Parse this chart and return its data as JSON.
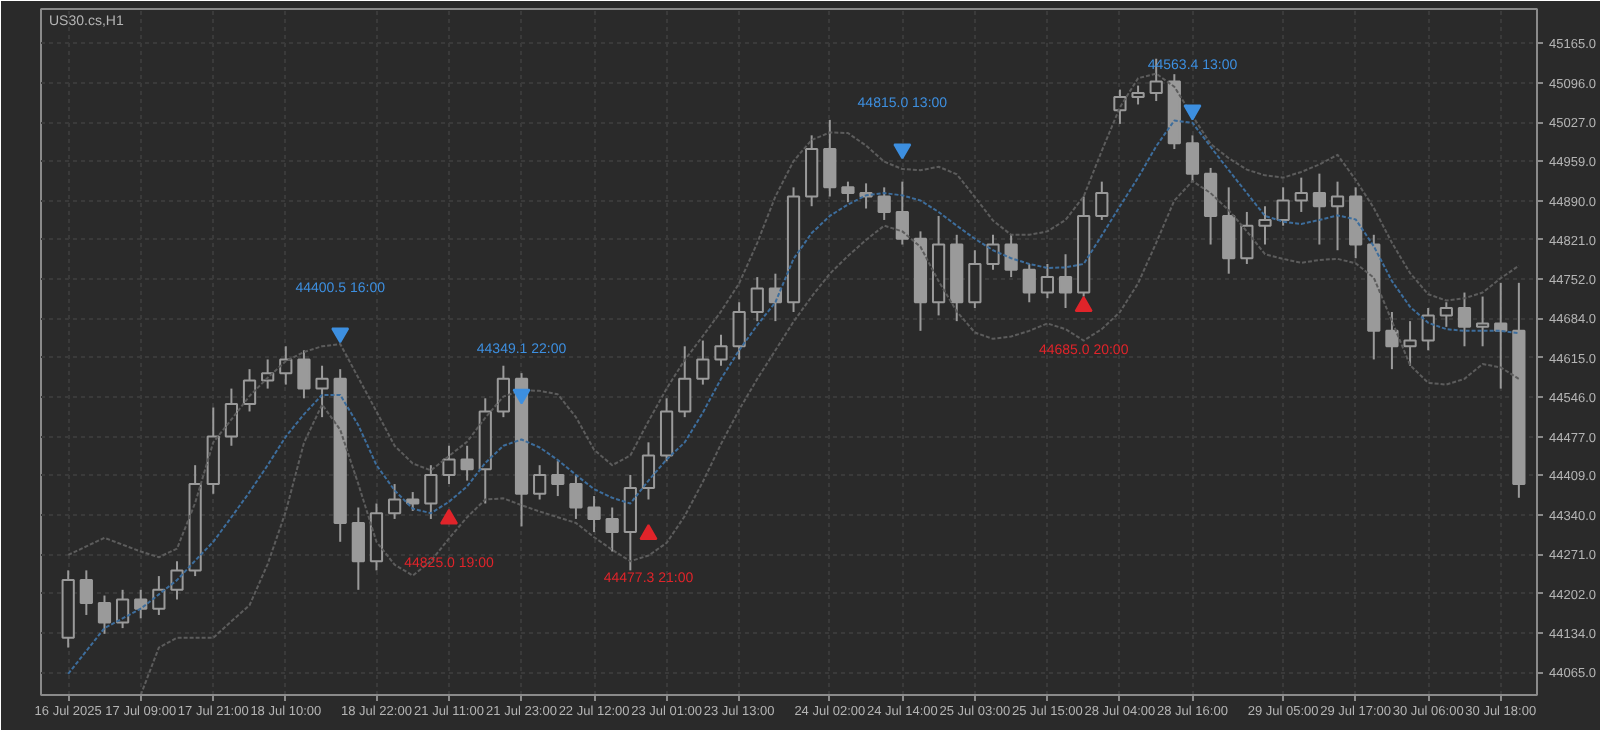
{
  "chart_data": {
    "type": "candlestick",
    "title": "US30.cs,H1",
    "categories": [
      "16 Jul 2025",
      null,
      null,
      null,
      "17 Jul 09:00",
      null,
      null,
      null,
      "17 Jul 21:00",
      null,
      null,
      null,
      "18 Jul 10:00",
      null,
      null,
      null,
      null,
      "18 Jul 22:00",
      null,
      null,
      null,
      "21 Jul 11:00",
      null,
      null,
      null,
      "21 Jul 23:00",
      null,
      null,
      null,
      "22 Jul 12:00",
      null,
      null,
      null,
      "23 Jul 01:00",
      null,
      null,
      null,
      "23 Jul 13:00",
      null,
      null,
      null,
      null,
      "24 Jul 02:00",
      null,
      null,
      null,
      "24 Jul 14:00",
      null,
      null,
      null,
      "25 Jul 03:00",
      null,
      null,
      null,
      "25 Jul 15:00",
      null,
      null,
      null,
      "28 Jul 04:00",
      null,
      null,
      null,
      "28 Jul 16:00",
      null,
      null,
      null,
      null,
      "29 Jul 05:00",
      null,
      null,
      null,
      "29 Jul 17:00",
      null,
      null,
      null,
      "30 Jul 06:00",
      null,
      null,
      null,
      "30 Jul 18:00",
      null
    ],
    "ohlc": [
      [
        44125,
        44243,
        44108,
        44226
      ],
      [
        44226,
        44243,
        44165,
        44186
      ],
      [
        44186,
        44199,
        44132,
        44152
      ],
      [
        44152,
        44209,
        44142,
        44192
      ],
      [
        44192,
        44209,
        44159,
        44176
      ],
      [
        44176,
        44233,
        44165,
        44209
      ],
      [
        44209,
        44259,
        44192,
        44243
      ],
      [
        44243,
        44427,
        44233,
        44394
      ],
      [
        44394,
        44528,
        44377,
        44477
      ],
      [
        44477,
        44561,
        44461,
        44534
      ],
      [
        44534,
        44595,
        44521,
        44575
      ],
      [
        44575,
        44612,
        44561,
        44588
      ],
      [
        44588,
        44635,
        44568,
        44612
      ],
      [
        44612,
        44628,
        44544,
        44561
      ],
      [
        44561,
        44601,
        44511,
        44578
      ],
      [
        44578,
        44595,
        44293,
        44326
      ],
      [
        44326,
        44353,
        44209,
        44259
      ],
      [
        44259,
        44360,
        44243,
        44343
      ],
      [
        44343,
        44394,
        44333,
        44367
      ],
      [
        44367,
        44380,
        44347,
        44360
      ],
      [
        44360,
        44427,
        44333,
        44410
      ],
      [
        44410,
        44461,
        44394,
        44437
      ],
      [
        44437,
        44461,
        44400,
        44420
      ],
      [
        44420,
        44544,
        44360,
        44521
      ],
      [
        44521,
        44601,
        44511,
        44578
      ],
      [
        44578,
        44588,
        44320,
        44377
      ],
      [
        44377,
        44427,
        44367,
        44410
      ],
      [
        44410,
        44434,
        44373,
        44394
      ],
      [
        44394,
        44410,
        44333,
        44353
      ],
      [
        44353,
        44373,
        44310,
        44333
      ],
      [
        44333,
        44353,
        44276,
        44310
      ],
      [
        44310,
        44410,
        44243,
        44387
      ],
      [
        44387,
        44467,
        44367,
        44444
      ],
      [
        44444,
        44544,
        44434,
        44521
      ],
      [
        44521,
        44635,
        44511,
        44578
      ],
      [
        44578,
        44645,
        44568,
        44612
      ],
      [
        44612,
        44655,
        44601,
        44635
      ],
      [
        44635,
        44712,
        44612,
        44695
      ],
      [
        44695,
        44756,
        44679,
        44736
      ],
      [
        44736,
        44762,
        44679,
        44712
      ],
      [
        44712,
        44913,
        44695,
        44897
      ],
      [
        44897,
        45004,
        44880,
        44980
      ],
      [
        44980,
        45031,
        44897,
        44913
      ],
      [
        44913,
        44923,
        44887,
        44903
      ],
      [
        44903,
        44920,
        44876,
        44897
      ],
      [
        44897,
        44913,
        44856,
        44870
      ],
      [
        44870,
        44923,
        44813,
        44823
      ],
      [
        44823,
        44836,
        44662,
        44712
      ],
      [
        44712,
        44863,
        44689,
        44813
      ],
      [
        44813,
        44830,
        44679,
        44712
      ],
      [
        44712,
        44803,
        44702,
        44779
      ],
      [
        44779,
        44830,
        44769,
        44813
      ],
      [
        44813,
        44830,
        44756,
        44769
      ],
      [
        44769,
        44779,
        44712,
        44729
      ],
      [
        44729,
        44779,
        44719,
        44756
      ],
      [
        44756,
        44796,
        44702,
        44729
      ],
      [
        44729,
        44897,
        44722,
        44863
      ],
      [
        44863,
        44923,
        44856,
        44903
      ],
      [
        45048,
        45084,
        45024,
        45071
      ],
      [
        45071,
        45091,
        45058,
        45078
      ],
      [
        45078,
        45138,
        45064,
        45098
      ],
      [
        45098,
        45111,
        44980,
        44990
      ],
      [
        44990,
        45004,
        44923,
        44937
      ],
      [
        44937,
        44947,
        44813,
        44863
      ],
      [
        44863,
        44913,
        44762,
        44789
      ],
      [
        44789,
        44870,
        44779,
        44846
      ],
      [
        44846,
        44880,
        44813,
        44856
      ],
      [
        44856,
        44913,
        44846,
        44890
      ],
      [
        44890,
        44930,
        44870,
        44903
      ],
      [
        44903,
        44937,
        44813,
        44880
      ],
      [
        44880,
        44923,
        44803,
        44897
      ],
      [
        44897,
        44913,
        44789,
        44813
      ],
      [
        44813,
        44830,
        44612,
        44662
      ],
      [
        44662,
        44695,
        44595,
        44635
      ],
      [
        44635,
        44679,
        44601,
        44645
      ],
      [
        44645,
        44702,
        44628,
        44689
      ],
      [
        44689,
        44712,
        44669,
        44702
      ],
      [
        44702,
        44729,
        44635,
        44669
      ],
      [
        44669,
        44722,
        44635,
        44675
      ],
      [
        44675,
        44746,
        44561,
        44662
      ],
      [
        44662,
        44746,
        44370,
        44394
      ]
    ],
    "color": "#9a9a9a",
    "series": [
      {
        "type": "line",
        "color": "#5c5c5c",
        "values": [
          44270,
          44285,
          44300,
          44288,
          44276,
          44266,
          44281,
          44361,
          44467,
          44507,
          44548,
          44580,
          44609,
          44625,
          44635,
          44639,
          44580,
          44521,
          44461,
          44430,
          44418,
          44443,
          44468,
          44510,
          44547,
          44558,
          44557,
          44551,
          44511,
          44454,
          44427,
          44444,
          44504,
          44561,
          44611,
          44653,
          44696,
          44745,
          44816,
          44897,
          44959,
          44996,
          45009,
          45008,
          44986,
          44958,
          44945,
          44943,
          44949,
          44936,
          44896,
          44855,
          44830,
          44830,
          44836,
          44856,
          44897,
          44977,
          45053,
          45104,
          45112,
          45089,
          45038,
          44989,
          44964,
          44944,
          44934,
          44930,
          44940,
          44953,
          44970,
          44926,
          44877,
          44816,
          44763,
          44726,
          44715,
          44719,
          44729,
          44754,
          44776
        ]
      },
      {
        "type": "line",
        "color": "#3d6d9c",
        "values": [
          44062,
          44102,
          44142,
          44159,
          44176,
          44201,
          44226,
          44260,
          44293,
          44336,
          44380,
          44427,
          44477,
          44516,
          44550,
          44550,
          44497,
          44427,
          44383,
          44351,
          44343,
          44363,
          44390,
          44431,
          44461,
          44472,
          44458,
          44436,
          44410,
          44385,
          44370,
          44360,
          44400,
          44437,
          44467,
          44519,
          44578,
          44628,
          44672,
          44712,
          44788,
          44833,
          44863,
          44883,
          44899,
          44903,
          44899,
          44890,
          44870,
          44846,
          44823,
          44803,
          44789,
          44779,
          44772,
          44773,
          44779,
          44829,
          44880,
          44930,
          44985,
          45030,
          45026,
          44984,
          44943,
          44903,
          44863,
          44853,
          44849,
          44856,
          44864,
          44857,
          44810,
          44749,
          44704,
          44676,
          44665,
          44662,
          44662,
          44662,
          44658
        ]
      },
      {
        "type": "line",
        "color": "#5c5c5c",
        "values": [
          null,
          null,
          null,
          null,
          44025,
          44108,
          44125,
          44125,
          44125,
          44154,
          44182,
          44254,
          44346,
          44466,
          44533,
          44489,
          44394,
          44293,
          44253,
          44234,
          44259,
          44299,
          44336,
          44367,
          44369,
          44357,
          44346,
          44336,
          44326,
          44301,
          44279,
          44259,
          44269,
          44291,
          44338,
          44398,
          44464,
          44524,
          44578,
          44628,
          44678,
          44722,
          44762,
          44793,
          44821,
          44846,
          44836,
          44809,
          44749,
          44696,
          44659,
          44648,
          44652,
          44662,
          44675,
          44665,
          44645,
          44665,
          44695,
          44745,
          44816,
          44890,
          44924,
          44903,
          44873,
          44836,
          44796,
          44788,
          44781,
          44786,
          44788,
          44780,
          44755,
          44679,
          44602,
          44571,
          44568,
          44578,
          44604,
          44598,
          44578
        ]
      },
      {
        "type": "scatter",
        "color": "#3d8fe0",
        "marker": "triangle",
        "values": [
          null,
          null,
          null,
          null,
          null,
          null,
          null,
          null,
          null,
          null,
          null,
          null,
          null,
          null,
          null,
          44658,
          null,
          null,
          null,
          null,
          null,
          null,
          null,
          null,
          null,
          44551,
          null,
          null,
          null,
          null,
          null,
          null,
          null,
          null,
          null,
          null,
          null,
          null,
          null,
          null,
          null,
          null,
          null,
          null,
          null,
          null,
          44980,
          null,
          null,
          null,
          null,
          null,
          null,
          null,
          null,
          null,
          null,
          null,
          null,
          null,
          null,
          null,
          45048,
          null,
          null,
          null,
          null,
          null,
          null,
          null,
          null,
          null,
          null,
          null,
          null,
          null,
          null,
          null,
          null,
          null,
          null
        ]
      },
      {
        "type": "scatter",
        "color": "#e0242a",
        "marker": "triangle",
        "values": [
          null,
          null,
          null,
          null,
          null,
          null,
          null,
          null,
          null,
          null,
          null,
          null,
          null,
          null,
          null,
          null,
          null,
          null,
          null,
          null,
          null,
          44333,
          null,
          null,
          null,
          null,
          null,
          null,
          null,
          null,
          null,
          null,
          44306,
          null,
          null,
          null,
          null,
          null,
          null,
          null,
          null,
          null,
          null,
          null,
          null,
          null,
          null,
          null,
          null,
          null,
          null,
          null,
          null,
          null,
          null,
          null,
          44705,
          null,
          null,
          null,
          null,
          null,
          null,
          null,
          null,
          null,
          null,
          null,
          null,
          null,
          null,
          null,
          null,
          null,
          null,
          null,
          null,
          null,
          null,
          null,
          null
        ]
      }
    ],
    "line_style": "dotted",
    "annotations": [
      "44400.5 16:00",
      "44349.1 22:00",
      "44815.0 13:00",
      "44563.4 13:00",
      "44825.0 19:00",
      "44477.3 21:00",
      "44685.0 20:00"
    ],
    "ylim": [
      44025,
      45225
    ],
    "yticks": [
      {
        "value": 45165,
        "label": "45165.0"
      },
      {
        "value": 45096,
        "label": "45096.0"
      },
      {
        "value": 45027,
        "label": "45027.0"
      },
      {
        "value": 44959,
        "label": "44959.0"
      },
      {
        "value": 44890,
        "label": "44890.0"
      },
      {
        "value": 44821,
        "label": "44821.0"
      },
      {
        "value": 44752,
        "label": "44752.0"
      },
      {
        "value": 44684,
        "label": "44684.0"
      },
      {
        "value": 44615,
        "label": "44615.0"
      },
      {
        "value": 44546,
        "label": "44546.0"
      },
      {
        "value": 44477,
        "label": "44477.0"
      },
      {
        "value": 44409,
        "label": "44409.0"
      },
      {
        "value": 44340,
        "label": "44340.0"
      },
      {
        "value": 44271,
        "label": "44271.0"
      },
      {
        "value": 44202,
        "label": "44202.0"
      },
      {
        "value": 44134,
        "label": "44134.0"
      },
      {
        "value": 44065,
        "label": "44065.0"
      }
    ],
    "grid": true
  }
}
